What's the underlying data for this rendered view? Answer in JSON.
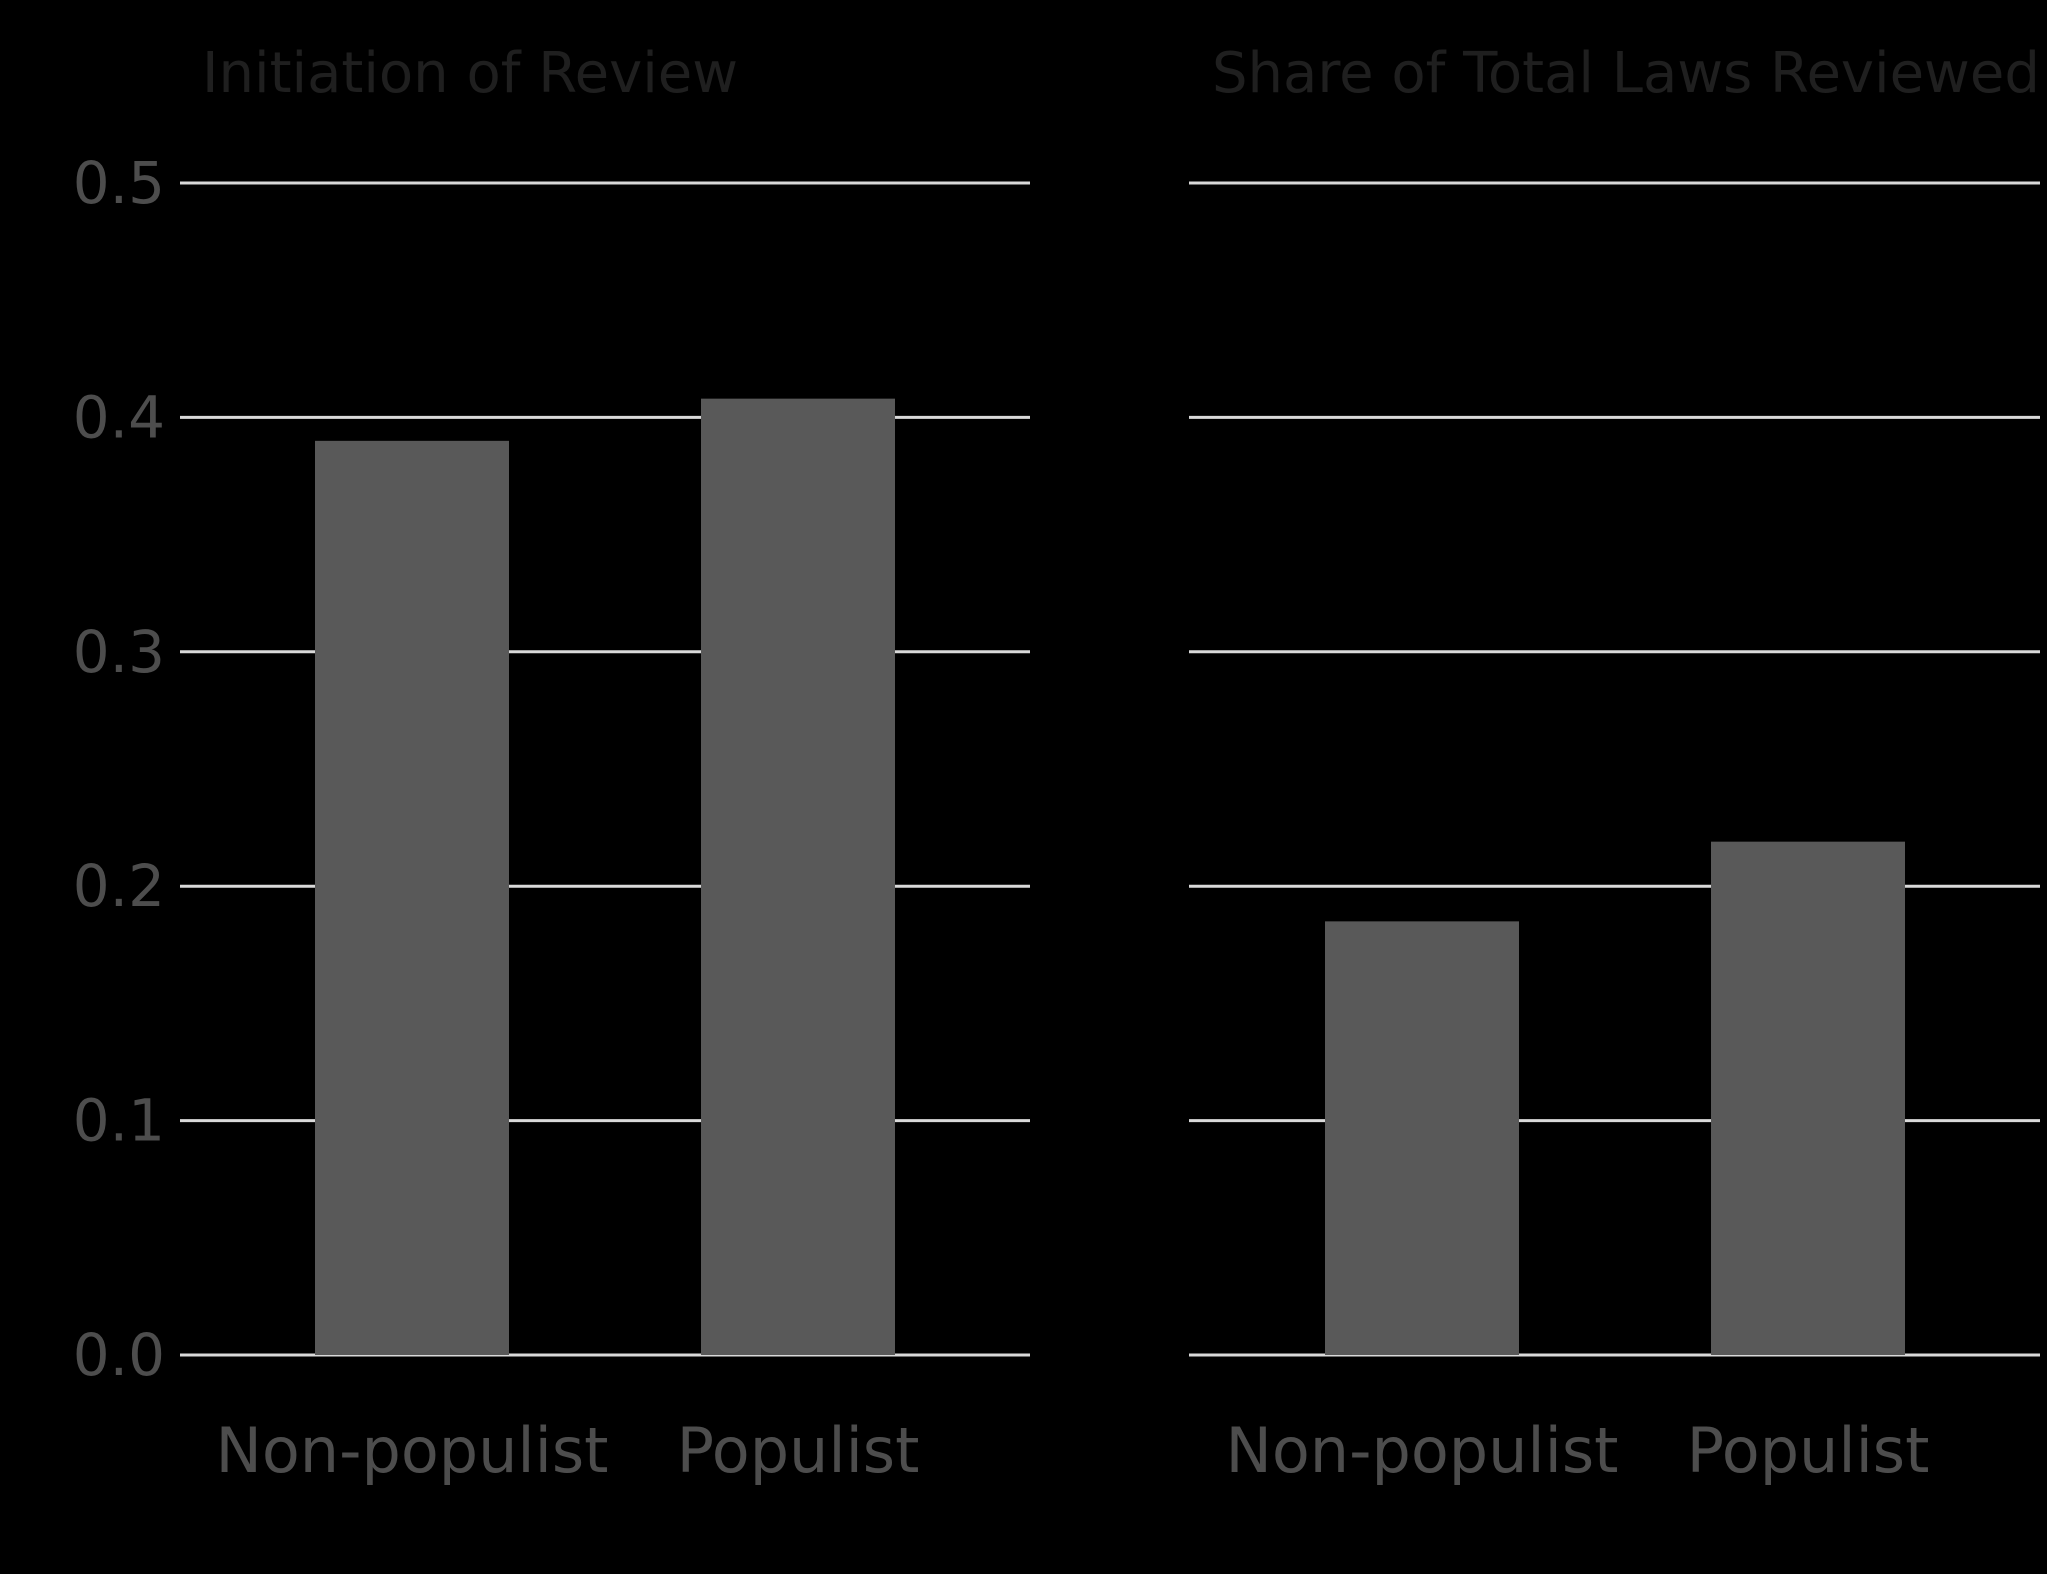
{
  "chart_data": [
    {
      "type": "bar",
      "title": "Initiation of Review",
      "categories": [
        "Non-populist",
        "Populist"
      ],
      "values": [
        0.39,
        0.408
      ],
      "ylim": [
        0,
        0.5
      ],
      "yticks": [
        "0.0",
        "0.1",
        "0.2",
        "0.3",
        "0.4",
        "0.5"
      ],
      "grid": true,
      "bar_color": "#595959",
      "gridline_color": "#d9d9d9"
    },
    {
      "type": "bar",
      "title": "Share of Total Laws Reviewed",
      "categories": [
        "Non-populist",
        "Populist"
      ],
      "values": [
        0.185,
        0.219
      ],
      "ylim": [
        0,
        0.5
      ],
      "yticks": [
        "0.0",
        "0.1",
        "0.2",
        "0.3",
        "0.4",
        "0.5"
      ],
      "grid": true,
      "bar_color": "#595959",
      "gridline_color": "#d9d9d9"
    }
  ]
}
